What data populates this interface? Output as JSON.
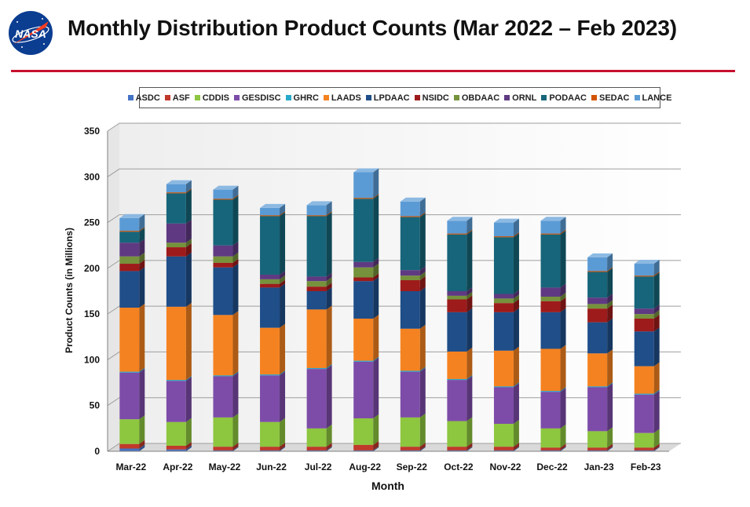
{
  "header": {
    "title": "Monthly Distribution Product Counts (Mar 2022 – Feb 2023)",
    "logo_text": "NASA",
    "accent_color": "#c8102e"
  },
  "chart_data": {
    "type": "bar",
    "stacked": true,
    "title": "Monthly Distribution Product Counts (Mar 2022 – Feb 2023)",
    "xlabel": "Month",
    "ylabel": "Product Counts (in Millions)",
    "ylim": [
      0,
      350
    ],
    "yticks": [
      0,
      50,
      100,
      150,
      200,
      250,
      300,
      350
    ],
    "grid": true,
    "legend_position": "top",
    "categories": [
      "Mar-22",
      "Apr-22",
      "May-22",
      "Jun-22",
      "Jul-22",
      "Aug-22",
      "Sep-22",
      "Oct-22",
      "Nov-22",
      "Dec-22",
      "Jan-23",
      "Feb-23"
    ],
    "series": [
      {
        "name": "ASDC",
        "color": "#4472c4",
        "values": [
          3,
          2,
          1,
          1,
          1,
          1,
          1,
          1,
          1,
          1,
          1,
          1
        ]
      },
      {
        "name": "ASF",
        "color": "#c0392b",
        "values": [
          5,
          4,
          4,
          4,
          4,
          6,
          4,
          4,
          4,
          3,
          3,
          3
        ]
      },
      {
        "name": "CDDIS",
        "color": "#8dc63f",
        "values": [
          27,
          26,
          32,
          27,
          20,
          29,
          32,
          28,
          25,
          21,
          18,
          16
        ]
      },
      {
        "name": "GESDISC",
        "color": "#7d4ca8",
        "values": [
          51,
          45,
          45,
          51,
          65,
          62,
          50,
          45,
          40,
          40,
          48,
          42
        ]
      },
      {
        "name": "GHRC",
        "color": "#27a9c9",
        "values": [
          1,
          1,
          1,
          1,
          1,
          1,
          1,
          1,
          1,
          1,
          1,
          1
        ]
      },
      {
        "name": "LAADS",
        "color": "#f58220",
        "values": [
          70,
          80,
          66,
          51,
          64,
          46,
          46,
          30,
          39,
          46,
          36,
          30
        ]
      },
      {
        "name": "LPDAAC",
        "color": "#1f4e89",
        "values": [
          40,
          55,
          52,
          44,
          20,
          41,
          41,
          43,
          42,
          40,
          34,
          38
        ]
      },
      {
        "name": "NSIDC",
        "color": "#9e1b1b",
        "values": [
          8,
          10,
          5,
          4,
          5,
          4,
          12,
          14,
          10,
          12,
          15,
          14
        ]
      },
      {
        "name": "OBDAAC",
        "color": "#76923c",
        "values": [
          8,
          5,
          7,
          5,
          6,
          11,
          5,
          4,
          5,
          5,
          5,
          5
        ]
      },
      {
        "name": "ORNL",
        "color": "#5f3a82",
        "values": [
          15,
          21,
          12,
          5,
          5,
          6,
          6,
          5,
          5,
          10,
          7,
          6
        ]
      },
      {
        "name": "PODAAC",
        "color": "#17657a",
        "values": [
          12,
          33,
          50,
          64,
          66,
          69,
          58,
          62,
          62,
          58,
          28,
          35
        ]
      },
      {
        "name": "SEDAC",
        "color": "#d35400",
        "values": [
          1,
          1,
          1,
          1,
          1,
          1,
          1,
          1,
          1,
          1,
          1,
          1
        ]
      },
      {
        "name": "LANCE",
        "color": "#5b9bd5",
        "values": [
          14,
          9,
          10,
          8,
          11,
          28,
          16,
          14,
          15,
          14,
          15,
          13
        ]
      }
    ]
  }
}
